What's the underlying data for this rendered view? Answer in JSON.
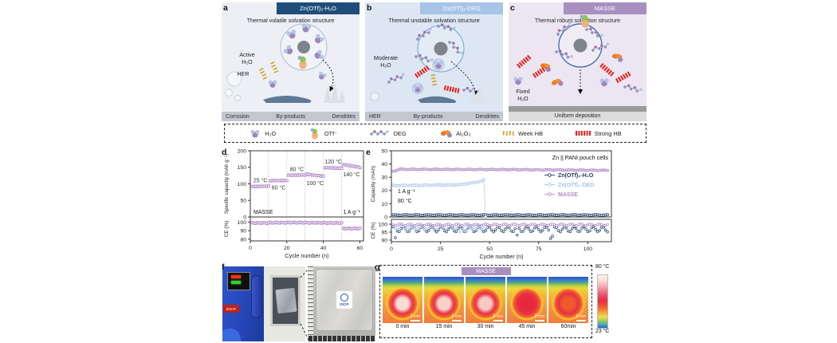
{
  "figure": {
    "panels_row1": {
      "a": {
        "letter": "a",
        "header": "Zn(OTf)₂-H₂O",
        "header_bg": "#1f4e7a",
        "bg": "#edeff4",
        "title": "Thermal volatile solvation structure",
        "label_water_line1": "Active",
        "label_water_line2": "H₂O",
        "label_her": "HER",
        "bottom_labels": [
          "Corrosion",
          "By-products",
          "Dendrites"
        ]
      },
      "b": {
        "letter": "b",
        "header": "Zn(OTf)₂-DEG",
        "header_bg": "#a7c4e6",
        "bg": "#dde7f3",
        "title": "Thermal unstable solvation structure",
        "label_water_line1": "Moderate",
        "label_water_line2": "H₂O",
        "bottom_labels": [
          "HER",
          "By-products",
          "Dendrites"
        ]
      },
      "c": {
        "letter": "c",
        "header": "MASSE",
        "header_bg": "#a78fc0",
        "bg": "#ebe6f1",
        "title": "Thermal robust solvation structure",
        "label_water_line1": "Fixed",
        "label_water_line2": "H₂O",
        "bottom_label": "Uniform deposition"
      }
    },
    "legend": {
      "items": [
        {
          "icon": "water-molecule-icon",
          "label": "H₂O"
        },
        {
          "icon": "otf-anion-icon",
          "label": "OTf⁻"
        },
        {
          "icon": "deg-chain-icon",
          "label": "DEG"
        },
        {
          "icon": "alumina-icon",
          "label": "Al₂O₃"
        },
        {
          "icon": "weak-hb-icon",
          "label": "Week HB",
          "color": "#d89c1e"
        },
        {
          "icon": "strong-hb-icon",
          "label": "Strong HB",
          "color": "#ee1a14"
        }
      ]
    },
    "panel_letters": {
      "d": "d",
      "e": "e",
      "f": "f",
      "g": "g"
    }
  },
  "chart_data": [
    {
      "id": "d",
      "type": "scatter",
      "marker": "open-square",
      "series_name": "MASSE",
      "color": "#b28bc8",
      "xlabel": "Cycle number (n)",
      "xlim": [
        0,
        62
      ],
      "x_ticks": [
        0,
        20,
        40,
        60
      ],
      "grid_x": [
        10,
        20,
        30,
        40,
        50
      ],
      "capacity_axis": {
        "label": "Specific capacity (mAh g⁻¹)",
        "lim": [
          0,
          200
        ],
        "ticks": [
          0,
          50,
          100,
          150,
          200
        ]
      },
      "ce_axis": {
        "label": "CE (%)",
        "lim": [
          78,
          106
        ],
        "ticks": [
          80,
          90,
          100
        ]
      },
      "segments": [
        {
          "temp_label": "25 °C",
          "label_pos": "above",
          "cycle_start": 1,
          "cycle_end": 10,
          "capacity_start": 92,
          "capacity_end": 93,
          "ce": 99.0
        },
        {
          "temp_label": "60 °C",
          "label_pos": "below",
          "cycle_start": 11,
          "cycle_end": 20,
          "capacity_start": 110,
          "capacity_end": 110,
          "ce": 99.3
        },
        {
          "temp_label": "80 °C",
          "label_pos": "above",
          "cycle_start": 21,
          "cycle_end": 30,
          "capacity_start": 126,
          "capacity_end": 127,
          "ce": 99.4
        },
        {
          "temp_label": "100 °C",
          "label_pos": "below",
          "cycle_start": 31,
          "cycle_end": 40,
          "capacity_start": 129,
          "capacity_end": 123,
          "ce": 99.2
        },
        {
          "temp_label": "120 °C",
          "label_pos": "above",
          "cycle_start": 41,
          "cycle_end": 50,
          "capacity_start": 149,
          "capacity_end": 147,
          "ce": 99.0
        },
        {
          "temp_label": "140 °C",
          "label_pos": "below",
          "cycle_start": 51,
          "cycle_end": 60,
          "capacity_start": 158,
          "capacity_end": 150,
          "ce": 92.5
        }
      ],
      "annotation_left": "MASSE",
      "annotation_right": "1 A g⁻¹"
    },
    {
      "id": "e",
      "type": "scatter",
      "marker": "open-circle",
      "title": "Zn || PANI pouch cells",
      "xlabel": "Cycle number (n)",
      "xlim": [
        0,
        112
      ],
      "x_ticks": [
        0,
        25,
        50,
        75,
        100
      ],
      "capacity_axis": {
        "label": "Capacity (mAh)",
        "lim": [
          0,
          50
        ],
        "ticks": [
          0,
          10,
          20,
          30,
          40,
          50
        ]
      },
      "ce_axis": {
        "label": "CE (%)",
        "lim": [
          89,
          103
        ],
        "ticks": [
          90,
          95,
          100
        ]
      },
      "annotation_rate": "1 A g⁻¹",
      "annotation_temp": "80 °C",
      "legend_position": "right-middle",
      "series": [
        {
          "name": "Zn(OTf)₂-H₂O",
          "color": "#1e3a68",
          "fill": "#ffffff",
          "capacity_profile": [
            [
              1,
              1.5
            ],
            [
              110,
              1.5
            ]
          ],
          "last_cycle": 110,
          "ce_base": 96.8,
          "ce_jitter": 1.6,
          "ce_dips": [
            [
              2,
              91.5
            ],
            [
              64,
              93.2
            ],
            [
              81,
              91.0
            ],
            [
              82,
              92.5
            ]
          ]
        },
        {
          "name": "Zn(OTf)₂-DEG",
          "color": "#a6c5e8",
          "fill": "#ffffff",
          "capacity_profile": [
            [
              1,
              23.8
            ],
            [
              34,
              24.2
            ],
            [
              40,
              25.5
            ],
            [
              46,
              27.0
            ],
            [
              47,
              28.0
            ],
            [
              48,
              0
            ]
          ],
          "last_cycle": 48,
          "ce_base": 97.8,
          "ce_jitter": 1.2,
          "ce_dips": [
            [
              35,
              95.2
            ],
            [
              38,
              95.8
            ]
          ]
        },
        {
          "name": "MASSE",
          "color": "#b189c5",
          "fill": "#ead9f0",
          "capacity_profile": [
            [
              1,
              34.5
            ],
            [
              4,
              36.0
            ],
            [
              60,
              35.8
            ],
            [
              110,
              35.2
            ]
          ],
          "last_cycle": 110,
          "ce_base": 99.6,
          "ce_jitter": 0.5,
          "ce_dips": []
        }
      ]
    }
  ],
  "panel_f": {
    "oven_label": "DICP",
    "pouch_logo": "DICP"
  },
  "panel_g": {
    "badge": "MASSE",
    "badge_bg": "#a78fc0",
    "frames": [
      {
        "time": "0 min",
        "scalebar": "2 cm",
        "core_color": "#f7ddd2"
      },
      {
        "time": "15 min",
        "scalebar": "2 cm",
        "core_color": "#f6d3c8"
      },
      {
        "time": "30 min",
        "scalebar": "2 cm",
        "core_color": "#f5cbc2"
      },
      {
        "time": "45 min",
        "scalebar": "2 cm",
        "core_color": "#e8283c"
      },
      {
        "time": "60min",
        "scalebar": "2 cm",
        "core_color": "#ee5a2c"
      }
    ],
    "colorbar": {
      "top_label": "80 °C",
      "bottom_label": "23 °C"
    }
  }
}
